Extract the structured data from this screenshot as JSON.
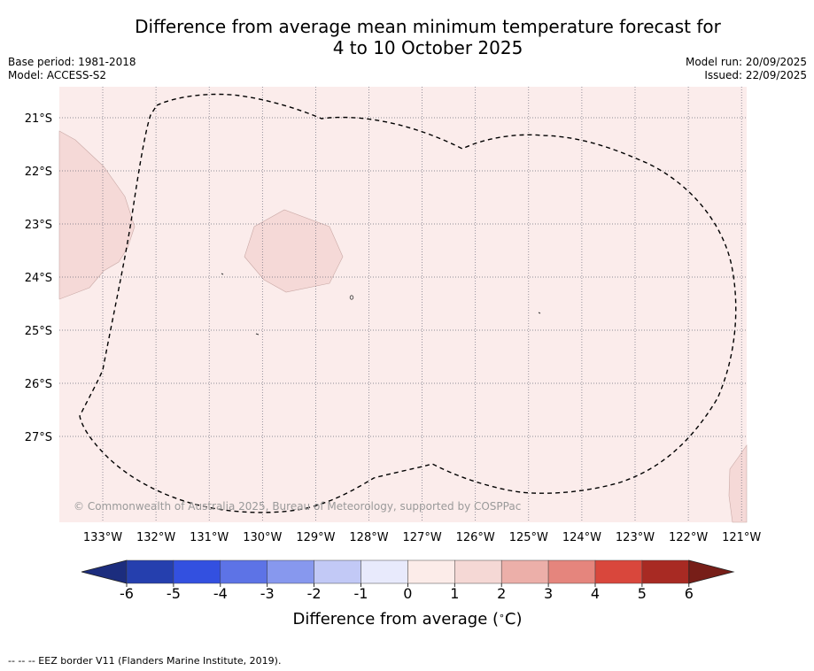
{
  "title": {
    "line1": "Difference from average mean minimum temperature forecast for",
    "line2": "4 to 10 October 2025"
  },
  "meta_left": {
    "base_period": "Base period: 1981-2018",
    "model": "Model: ACCESS-S2"
  },
  "meta_right": {
    "model_run": "Model run: 20/09/2025",
    "issued": "Issued: 22/09/2025"
  },
  "map": {
    "lon_labels": [
      "133°W",
      "132°W",
      "131°W",
      "130°W",
      "129°W",
      "128°W",
      "127°W",
      "126°W",
      "125°W",
      "124°W",
      "123°W",
      "122°W",
      "121°W"
    ],
    "lat_labels": [
      "21°S",
      "22°S",
      "23°S",
      "24°S",
      "25°S",
      "26°S",
      "27°S"
    ],
    "background_color": "#fbeceb",
    "anomaly_region_color": "#f5d9d7",
    "copyright": "© Commonwealth of Australia 2025, Bureau of Meteorology, supported by COSPPac"
  },
  "colorbar": {
    "ticks": [
      "-6",
      "-5",
      "-4",
      "-3",
      "-2",
      "-1",
      "0",
      "1",
      "2",
      "3",
      "4",
      "5",
      "6"
    ],
    "colors": [
      "#253fae",
      "#3350e0",
      "#5d73e6",
      "#8798ee",
      "#c2c9f6",
      "#e8eafc",
      "#fcece9",
      "#f5d8d5",
      "#ecafa9",
      "#e5857d",
      "#d9473c",
      "#a82a23"
    ],
    "below_color": "#1c2d7e",
    "above_color": "#771e18",
    "label": "Difference from average (",
    "label_degree": "∘",
    "label_unit": "C)"
  },
  "legend": {
    "eez_text": "--  --  -- EEZ border V11 (Flanders Marine Institute, 2019)."
  }
}
